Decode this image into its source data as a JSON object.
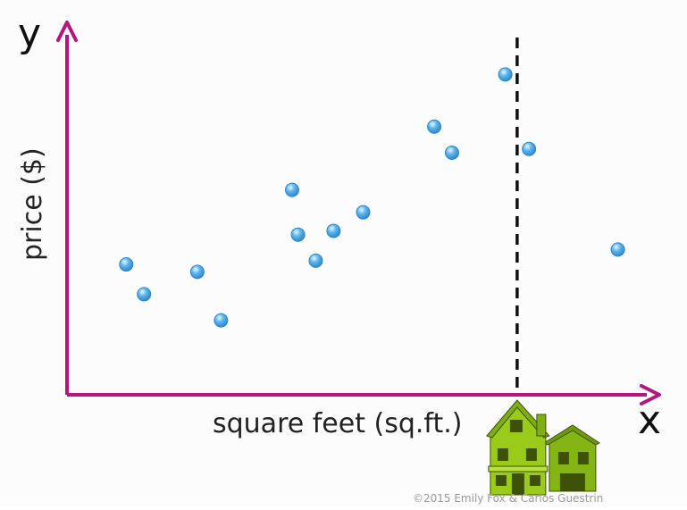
{
  "chart_data": {
    "type": "scatter",
    "title": "",
    "xlabel": "square feet (sq.ft.)",
    "ylabel": "price ($)",
    "x_axis_letter": "x",
    "y_axis_letter": "y",
    "xlim": [
      0,
      100
    ],
    "ylim": [
      0,
      100
    ],
    "grid": false,
    "points": [
      {
        "x": 10,
        "y": 35
      },
      {
        "x": 13,
        "y": 27
      },
      {
        "x": 22,
        "y": 33
      },
      {
        "x": 26,
        "y": 20
      },
      {
        "x": 38,
        "y": 55
      },
      {
        "x": 39,
        "y": 43
      },
      {
        "x": 42,
        "y": 36
      },
      {
        "x": 45,
        "y": 44
      },
      {
        "x": 50,
        "y": 49
      },
      {
        "x": 62,
        "y": 72
      },
      {
        "x": 65,
        "y": 65
      },
      {
        "x": 74,
        "y": 86
      },
      {
        "x": 78,
        "y": 66
      },
      {
        "x": 93,
        "y": 39
      }
    ],
    "marker": {
      "x": 76,
      "style": "dashed",
      "icon": "house-icon"
    }
  },
  "colors": {
    "axis": "#b5157f",
    "point_fill": "#5ab4ec",
    "point_stroke": "#2f86c8",
    "marker_line": "#111111",
    "label": "#222222",
    "house_main": "#9acb1b",
    "house_dark": "#3d5208",
    "copyright": "#9a9a9a"
  },
  "copyright": "©2015 Emily Fox & Carlos Guestrin"
}
